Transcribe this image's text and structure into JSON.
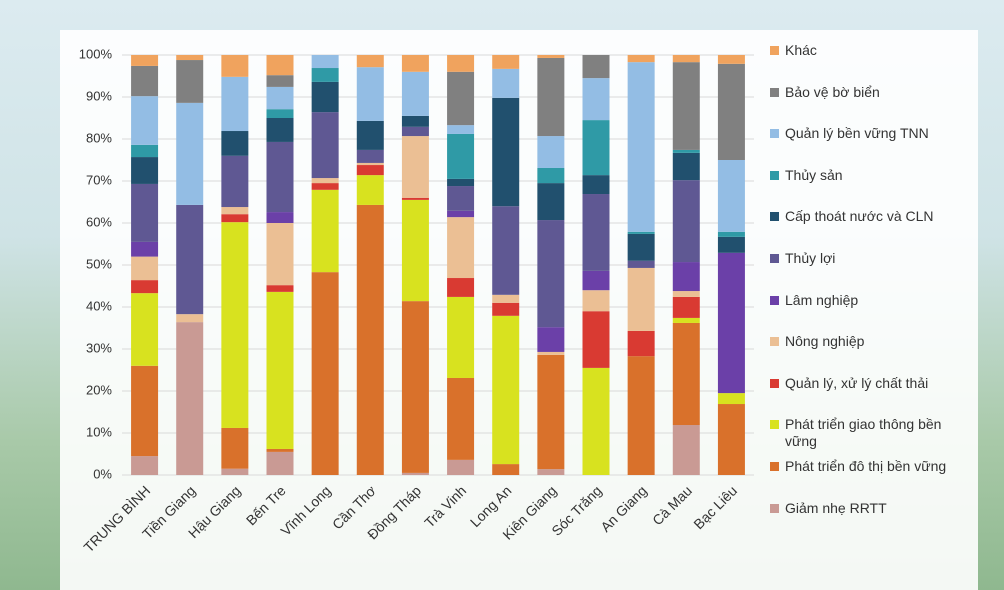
{
  "chart_data": {
    "type": "stacked_bar",
    "categories": [
      "TRUNG BÌNH",
      "Tiền Giang",
      "Hậu Giang",
      "Bến Tre",
      "Vĩnh Long",
      "Cần Thơ",
      "Đồng Tháp",
      "Trà Vinh",
      "Long An",
      "Kiên Giang",
      "Sóc Trăng",
      "An Giang",
      "Cà Mau",
      "Bạc Liêu"
    ],
    "ylim": [
      0,
      100
    ],
    "yticks": [
      {
        "value": 0,
        "label": "0%"
      },
      {
        "value": 10,
        "label": "10%"
      },
      {
        "value": 20,
        "label": "20%"
      },
      {
        "value": 30,
        "label": "30%"
      },
      {
        "value": 40,
        "label": "40%"
      },
      {
        "value": 50,
        "label": "50%"
      },
      {
        "value": 60,
        "label": "60%"
      },
      {
        "value": 70,
        "label": "70%"
      },
      {
        "value": 80,
        "label": "80%"
      },
      {
        "value": 90,
        "label": "90%"
      },
      {
        "value": 100,
        "label": "100%"
      }
    ],
    "legend": "right",
    "series": [
      {
        "name": "Giảm nhẹ RRTT",
        "color": "#c99a94",
        "values": [
          4.5,
          36.4,
          1.5,
          5.5,
          0,
          0,
          0.5,
          3.6,
          0,
          1.4,
          0,
          0,
          11.9,
          0
        ]
      },
      {
        "name": "Phát triển đô thị bền vững",
        "color": "#d9712b",
        "values": [
          21.5,
          0,
          9.7,
          0.7,
          48.3,
          64.3,
          40.9,
          19.5,
          2.6,
          27.2,
          0,
          28.3,
          24.3,
          16.9
        ]
      },
      {
        "name": "Phát triển giao thông bền vững",
        "color": "#d8e21f",
        "values": [
          17.3,
          0,
          49,
          37.4,
          19.6,
          7.1,
          24.1,
          19.3,
          35.3,
          0,
          25.5,
          0,
          1.2,
          2.6
        ]
      },
      {
        "name": "Quản lý, xử lý chất thải",
        "color": "#d93a32",
        "values": [
          3.1,
          0,
          1.9,
          1.6,
          1.6,
          2.4,
          0.5,
          4.5,
          3.1,
          0,
          13.5,
          6,
          5,
          0
        ]
      },
      {
        "name": "Nông nghiệp",
        "color": "#ebbf94",
        "values": [
          5.6,
          1.9,
          1.7,
          14.8,
          1.2,
          0.5,
          14.7,
          14.5,
          1.9,
          0.7,
          5,
          15,
          1.4,
          0
        ]
      },
      {
        "name": "Lâm nghiệp",
        "color": "#6b40a8",
        "values": [
          3.5,
          0,
          0,
          2.6,
          0,
          0,
          0,
          1.5,
          0,
          5.9,
          4.6,
          0,
          6.9,
          33.4
        ]
      },
      {
        "name": "Thủy lợi",
        "color": "#5f5893",
        "values": [
          13.8,
          26,
          12.2,
          16.7,
          15.7,
          3.1,
          2.2,
          5.9,
          21.1,
          25.5,
          18.3,
          1.7,
          19.5,
          0
        ]
      },
      {
        "name": "Cấp thoát nước và CLN",
        "color": "#21506e",
        "values": [
          6.4,
          0,
          5.9,
          5.7,
          7.2,
          6.9,
          2.6,
          1.7,
          25.8,
          8.8,
          4.5,
          6.4,
          6.5,
          3.8
        ]
      },
      {
        "name": "Thủy sản",
        "color": "#2f9aa6",
        "values": [
          2.9,
          0,
          0,
          2.1,
          3.3,
          0,
          0,
          10.7,
          0,
          3.6,
          13.1,
          0.5,
          0.7,
          1.2
        ]
      },
      {
        "name": "Quản lý bền vững TNN",
        "color": "#93bde4",
        "values": [
          11.6,
          24.3,
          12.9,
          5.3,
          3.1,
          12.8,
          10.5,
          2.1,
          6.9,
          7.6,
          10,
          40.4,
          0,
          17.1
        ]
      },
      {
        "name": "Bảo vệ bờ biển",
        "color": "#808080",
        "values": [
          7.2,
          10.2,
          0,
          2.8,
          0,
          0,
          0,
          12.7,
          0,
          18.6,
          5.5,
          0,
          20.9,
          22.9
        ]
      },
      {
        "name": "Khác",
        "color": "#f0a35e",
        "values": [
          2.6,
          1.2,
          5.2,
          4.8,
          0,
          2.9,
          4,
          4,
          3.3,
          0.7,
          0,
          1.7,
          1.7,
          2.1
        ]
      }
    ]
  }
}
